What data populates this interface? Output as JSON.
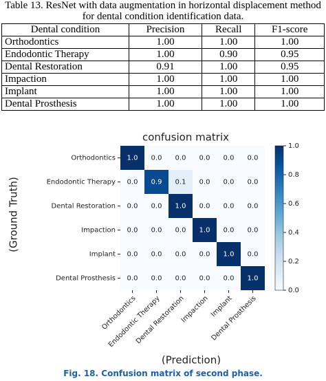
{
  "table": {
    "caption": "Table 13. ResNet with data augmentation in horizontal displacement method for dental condition identification data.",
    "header": [
      "Dental condition",
      "Precision",
      "Recall",
      "F1-score"
    ],
    "rows": [
      [
        "Orthodontics",
        "1.00",
        "1.00",
        "1.00"
      ],
      [
        "Endodontic Therapy",
        "1.00",
        "0.90",
        "0.95"
      ],
      [
        "Dental Restoration",
        "0.91",
        "1.00",
        "0.95"
      ],
      [
        "Impaction",
        "1.00",
        "1.00",
        "1.00"
      ],
      [
        "Implant",
        "1.00",
        "1.00",
        "1.00"
      ],
      [
        "Dental Prosthesis",
        "1.00",
        "1.00",
        "1.00"
      ]
    ]
  },
  "figure": {
    "chart_data": {
      "type": "heatmap",
      "title": "confusion matrix",
      "x_label": "(Prediction)",
      "y_label": "(Ground Truth)",
      "categories": [
        "Orthodontics",
        "Endodontic Therapy",
        "Dental Restoration",
        "Impaction",
        "Implant",
        "Dental Prosthesis"
      ],
      "values": [
        [
          1,
          0,
          0,
          0,
          0,
          0
        ],
        [
          0,
          0.9,
          0.1,
          0,
          0,
          0
        ],
        [
          0,
          0,
          1,
          0,
          0,
          0
        ],
        [
          0,
          0,
          0,
          1,
          0,
          0
        ],
        [
          0,
          0,
          0,
          0,
          1,
          0
        ],
        [
          0,
          0,
          0,
          0,
          0,
          1
        ]
      ],
      "value_labels": [
        [
          "1.0",
          "0.0",
          "0.0",
          "0.0",
          "0.0",
          "0.0"
        ],
        [
          "0.0",
          "0.9",
          "0.1",
          "0.0",
          "0.0",
          "0.0"
        ],
        [
          "0.0",
          "0.0",
          "1.0",
          "0.0",
          "0.0",
          "0.0"
        ],
        [
          "0.0",
          "0.0",
          "0.0",
          "1.0",
          "0.0",
          "0.0"
        ],
        [
          "0.0",
          "0.0",
          "0.0",
          "0.0",
          "1.0",
          "0.0"
        ],
        [
          "0.0",
          "0.0",
          "0.0",
          "0.0",
          "0.0",
          "1.0"
        ]
      ],
      "clim": [
        0,
        1
      ],
      "cticks": [
        {
          "value": 0,
          "label": "0.0"
        },
        {
          "value": 0.2,
          "label": "0.2"
        },
        {
          "value": 0.4,
          "label": "0.4"
        },
        {
          "value": 0.6,
          "label": "0.6"
        },
        {
          "value": 0.8,
          "label": "0.8"
        },
        {
          "value": 1,
          "label": "1.0"
        }
      ],
      "colormap": [
        "#f7fbff",
        "#deebf7",
        "#c6dbef",
        "#9ecae1",
        "#6baed6",
        "#4292c6",
        "#2171b5",
        "#08519c",
        "#08306b"
      ]
    },
    "caption_label": "Fig. 18.",
    "caption": "Confusion matrix of second phase."
  }
}
